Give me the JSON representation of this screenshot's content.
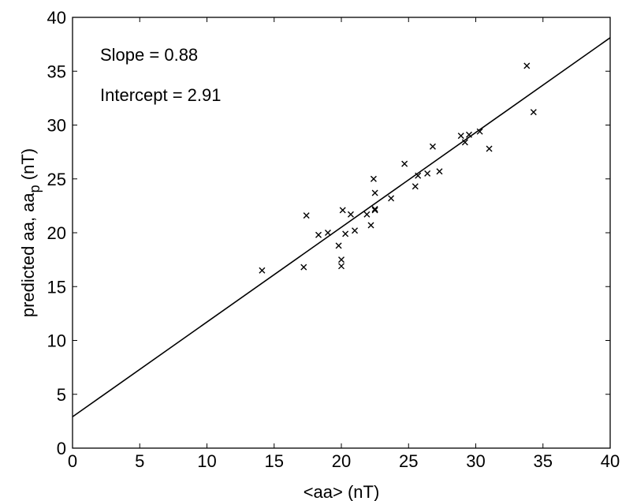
{
  "chart_data": {
    "type": "scatter",
    "xlabel": "<aa> (nT)",
    "ylabel_main": "predicted aa, aa",
    "ylabel_sub": "p",
    "ylabel_unit": " (nT)",
    "xlim": [
      0,
      40
    ],
    "ylim": [
      0,
      40
    ],
    "xticks": [
      0,
      5,
      10,
      15,
      20,
      25,
      30,
      35,
      40
    ],
    "yticks": [
      0,
      5,
      10,
      15,
      20,
      25,
      30,
      35,
      40
    ],
    "grid": false,
    "marker": "x",
    "annotations": [
      "Slope = 0.88",
      "Intercept = 2.91"
    ],
    "fit_line": {
      "slope": 0.88,
      "intercept": 2.91
    },
    "points": [
      {
        "x": 14.1,
        "y": 16.5
      },
      {
        "x": 17.2,
        "y": 16.8
      },
      {
        "x": 17.4,
        "y": 21.6
      },
      {
        "x": 18.3,
        "y": 19.8
      },
      {
        "x": 19.0,
        "y": 20.0
      },
      {
        "x": 19.8,
        "y": 18.8
      },
      {
        "x": 20.0,
        "y": 17.5
      },
      {
        "x": 20.0,
        "y": 16.9
      },
      {
        "x": 20.1,
        "y": 22.1
      },
      {
        "x": 20.3,
        "y": 19.9
      },
      {
        "x": 20.7,
        "y": 21.7
      },
      {
        "x": 21.0,
        "y": 20.2
      },
      {
        "x": 21.9,
        "y": 21.7
      },
      {
        "x": 22.2,
        "y": 20.7
      },
      {
        "x": 22.4,
        "y": 25.0
      },
      {
        "x": 22.5,
        "y": 23.7
      },
      {
        "x": 22.5,
        "y": 22.1
      },
      {
        "x": 22.5,
        "y": 22.2
      },
      {
        "x": 23.7,
        "y": 23.2
      },
      {
        "x": 24.7,
        "y": 26.4
      },
      {
        "x": 25.5,
        "y": 24.3
      },
      {
        "x": 25.7,
        "y": 25.3
      },
      {
        "x": 26.4,
        "y": 25.5
      },
      {
        "x": 26.8,
        "y": 28.0
      },
      {
        "x": 27.3,
        "y": 25.7
      },
      {
        "x": 28.9,
        "y": 29.0
      },
      {
        "x": 29.2,
        "y": 28.4
      },
      {
        "x": 29.5,
        "y": 29.1
      },
      {
        "x": 30.3,
        "y": 29.4
      },
      {
        "x": 31.0,
        "y": 27.8
      },
      {
        "x": 33.8,
        "y": 35.5
      },
      {
        "x": 34.3,
        "y": 31.2
      }
    ]
  }
}
